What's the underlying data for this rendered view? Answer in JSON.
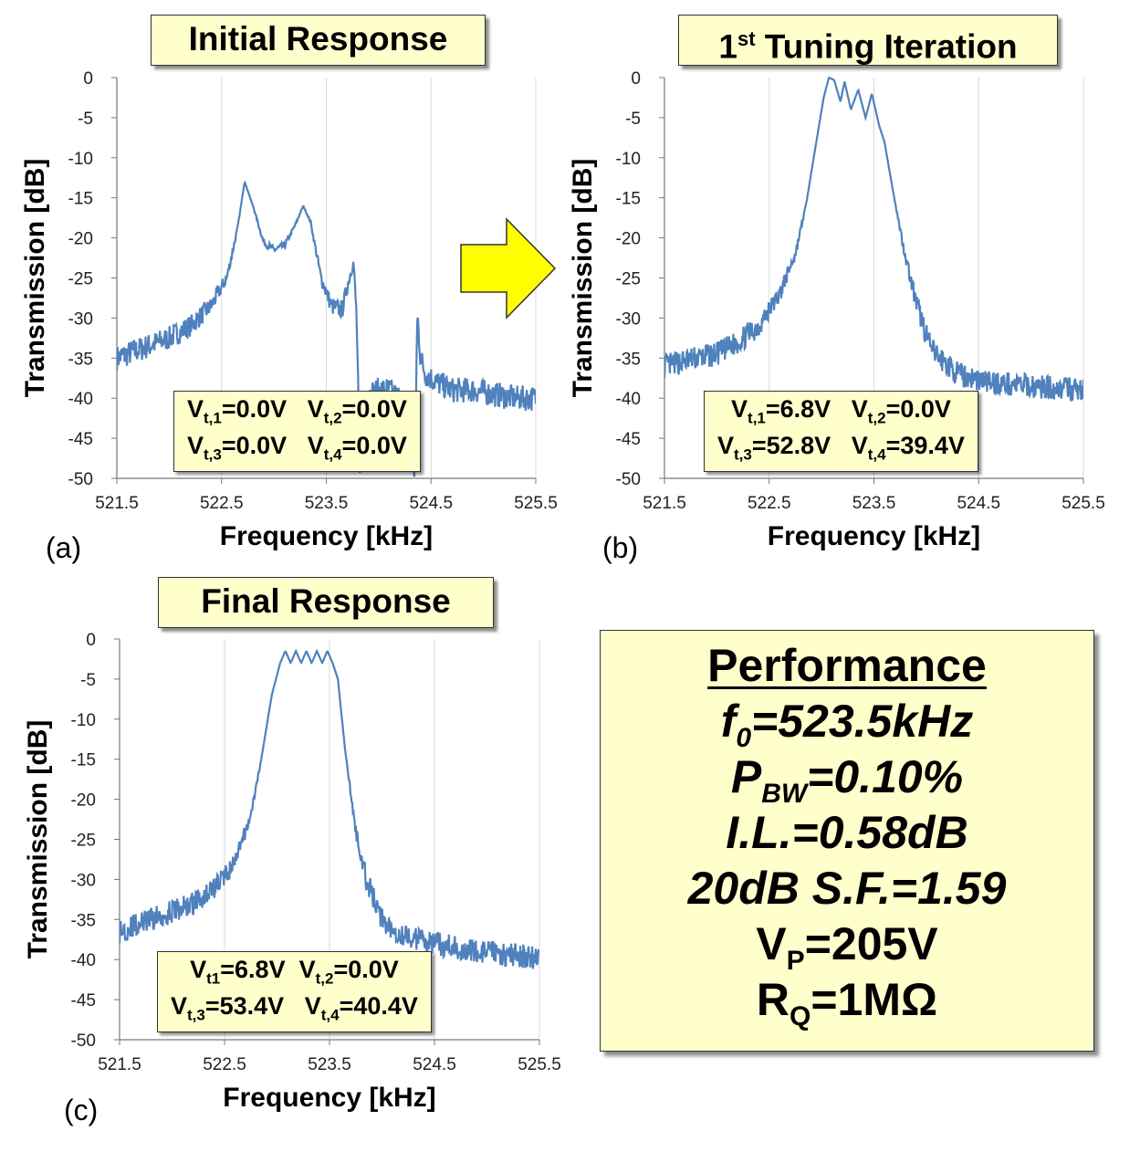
{
  "panels": [
    {
      "id": "a",
      "title": "Initial Response",
      "title_sup": "",
      "label": "(a)",
      "xlabel": "Frequency [kHz]",
      "ylabel": "Transmission [dB]",
      "voltages": {
        "line1": {
          "a_sym": "V",
          "a_sub": "t,1",
          "a_val": "=0.0V",
          "b_sym": "V",
          "b_sub": "t,2",
          "b_val": "=0.0V"
        },
        "line2": {
          "a_sym": "V",
          "a_sub": "t,3",
          "a_val": "=0.0V",
          "b_sym": "V",
          "b_sub": "t,4",
          "b_val": "=0.0V"
        }
      }
    },
    {
      "id": "b",
      "title": " Tuning Iteration",
      "title_num": "1",
      "title_sup": "st",
      "label": "(b)",
      "xlabel": "Frequency [kHz]",
      "ylabel": "Transmission [dB]",
      "voltages": {
        "line1": {
          "a_sym": "V",
          "a_sub": "t,1",
          "a_val": "=6.8V",
          "b_sym": "V",
          "b_sub": "t,2",
          "b_val": "=0.0V"
        },
        "line2": {
          "a_sym": "V",
          "a_sub": "t,3",
          "a_val": "=52.8V",
          "b_sym": "V",
          "b_sub": "t,4",
          "b_val": "=39.4V"
        }
      }
    },
    {
      "id": "c",
      "title": "Final Response",
      "title_sup": "",
      "label": "(c)",
      "xlabel": "Frequency [kHz]",
      "ylabel": "Transmission [dB]",
      "voltages": {
        "line1": {
          "a_sym": "V",
          "a_sub": "t1",
          "a_val": "=6.8V",
          "b_sym": "V",
          "b_sub": "t,2",
          "b_val": "=0.0V"
        },
        "line2": {
          "a_sym": "V",
          "a_sub": "t,3",
          "a_val": "=53.4V",
          "b_sym": "V",
          "b_sub": "t,4",
          "b_val": "=40.4V"
        }
      }
    }
  ],
  "performance": {
    "title": "Performance",
    "f0": {
      "sym": "f",
      "sub": "0",
      "val": "=523.5kHz"
    },
    "pbw": {
      "sym": "P",
      "sub": "BW",
      "val": "=0.10%"
    },
    "il": "I.L.=0.58dB",
    "sf": "20dB S.F.=1.59",
    "vp": {
      "sym": "V",
      "sub": "P",
      "val": "=205V"
    },
    "rq": {
      "sym": "R",
      "sub": "Q",
      "val": "=1MΩ"
    }
  },
  "colors": {
    "line": "#4f81bd",
    "box_fill": "#ffffcc",
    "arrow_fill": "#ffff00",
    "grid": "#d9d9d9"
  },
  "chart_data": [
    {
      "type": "line",
      "xlabel": "Frequency [kHz]",
      "ylabel": "Transmission [dB]",
      "xlim": [
        521.5,
        525.5
      ],
      "ylim": [
        -50,
        0
      ],
      "xticks": [
        "521.5",
        "522.5",
        "523.5",
        "524.5",
        "525.5"
      ],
      "yticks": [
        "0",
        "-5",
        "-10",
        "-15",
        "-20",
        "-25",
        "-30",
        "-35",
        "-40",
        "-45",
        "-50"
      ],
      "grid": "vertical",
      "noise_db": 1.6,
      "noise_floor_db": -40,
      "series": [
        {
          "x": [
            521.5,
            521.8,
            522.0,
            522.2,
            522.4,
            522.55,
            522.65,
            522.72,
            522.8,
            522.9,
            523.0,
            523.1,
            523.2,
            523.28,
            523.35,
            523.45,
            523.55,
            523.65,
            523.72,
            523.76,
            523.79,
            523.82,
            523.85,
            523.9,
            524.0,
            524.1,
            524.2,
            524.3,
            524.34,
            524.37,
            524.4,
            524.45,
            524.55,
            524.7,
            524.9,
            525.1,
            525.3,
            525.5
          ],
          "y": [
            -35,
            -33.5,
            -32.5,
            -31,
            -28.5,
            -25,
            -19,
            -13,
            -16,
            -20.5,
            -21.5,
            -21,
            -18.5,
            -16,
            -18,
            -25,
            -28.5,
            -29,
            -25,
            -23,
            -30,
            -50,
            -40,
            -39.5,
            -39,
            -39,
            -40,
            -41,
            -50,
            -29.5,
            -35,
            -37,
            -38,
            -39,
            -39,
            -39.5,
            -40,
            -40
          ]
        }
      ]
    },
    {
      "type": "line",
      "xlabel": "Frequency [kHz]",
      "ylabel": "Transmission [dB]",
      "xlim": [
        521.5,
        525.5
      ],
      "ylim": [
        -50,
        0
      ],
      "xticks": [
        "521.5",
        "522.5",
        "523.5",
        "524.5",
        "525.5"
      ],
      "yticks": [
        "0",
        "-5",
        "-10",
        "-15",
        "-20",
        "-25",
        "-30",
        "-35",
        "-40",
        "-45",
        "-50"
      ],
      "grid": "vertical",
      "noise_db": 1.5,
      "noise_floor_db": -38,
      "series": [
        {
          "x": [
            521.5,
            521.8,
            522.0,
            522.2,
            522.4,
            522.6,
            522.75,
            522.85,
            522.95,
            523.02,
            523.07,
            523.12,
            523.18,
            523.22,
            523.28,
            523.35,
            523.42,
            523.48,
            523.55,
            523.6,
            523.68,
            523.78,
            523.9,
            524.05,
            524.3,
            524.6,
            525.0,
            525.5
          ],
          "y": [
            -36,
            -35,
            -34.5,
            -33,
            -31,
            -27,
            -22,
            -16,
            -8,
            -2.5,
            0,
            -0.3,
            -3,
            -0.5,
            -4,
            -1.5,
            -5,
            -2,
            -6,
            -8,
            -14,
            -21,
            -28,
            -34,
            -37,
            -38,
            -38.5,
            -39
          ]
        }
      ]
    },
    {
      "type": "line",
      "xlabel": "Frequency [kHz]",
      "ylabel": "Transmission [dB]",
      "xlim": [
        521.5,
        525.5
      ],
      "ylim": [
        -50,
        0
      ],
      "xticks": [
        "521.5",
        "522.5",
        "523.5",
        "524.5",
        "525.5"
      ],
      "yticks": [
        "0",
        "-5",
        "-10",
        "-15",
        "-20",
        "-25",
        "-30",
        "-35",
        "-40",
        "-45",
        "-50"
      ],
      "grid": "vertical",
      "noise_db": 1.5,
      "noise_floor_db": -38,
      "series": [
        {
          "x": [
            521.5,
            521.8,
            522.0,
            522.2,
            522.4,
            522.6,
            522.75,
            522.85,
            522.95,
            523.03,
            523.08,
            523.13,
            523.18,
            523.23,
            523.28,
            523.33,
            523.38,
            523.43,
            523.48,
            523.53,
            523.58,
            523.65,
            523.75,
            523.85,
            524.0,
            524.2,
            524.5,
            524.9,
            525.3,
            525.5
          ],
          "y": [
            -36.5,
            -35,
            -34,
            -33,
            -31,
            -28,
            -22,
            -15,
            -7,
            -3,
            -1.5,
            -3,
            -1.5,
            -3,
            -1.5,
            -3,
            -1.5,
            -3,
            -1.5,
            -3,
            -5,
            -14,
            -24,
            -30,
            -35,
            -37,
            -38,
            -39,
            -39.5,
            -40
          ]
        }
      ]
    }
  ]
}
